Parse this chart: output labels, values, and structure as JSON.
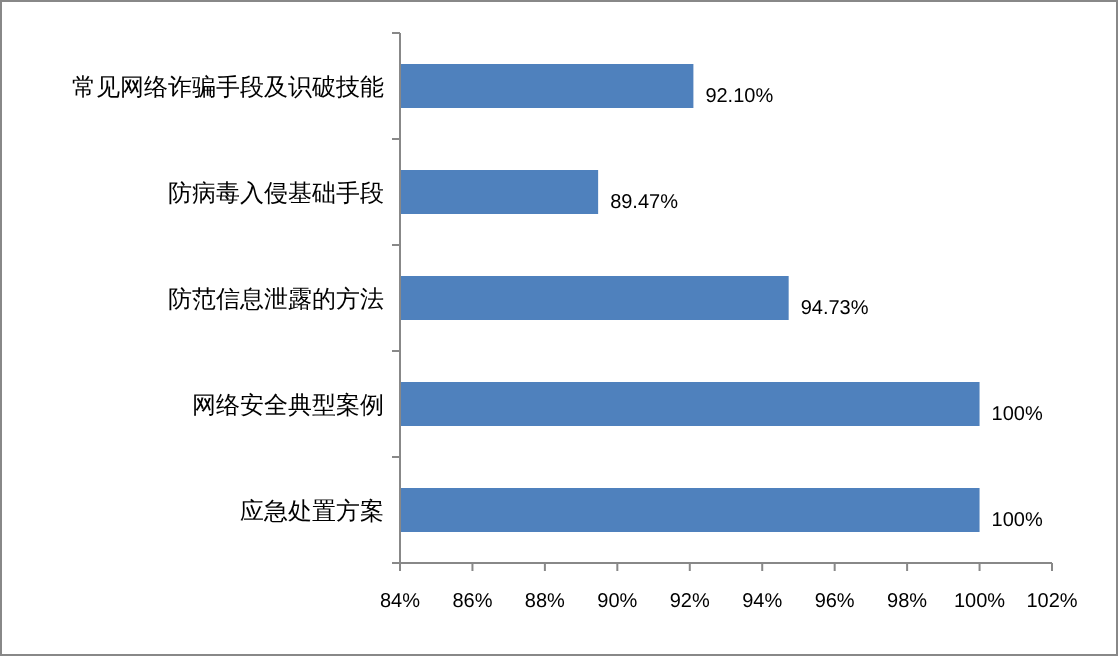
{
  "chart_data": {
    "type": "bar",
    "orientation": "horizontal",
    "categories": [
      "常见网络诈骗手段及识破技能",
      "防病毒入侵基础手段",
      "防范信息泄露的方法",
      "网络安全典型案例",
      "应急处置方案"
    ],
    "values": [
      92.1,
      89.47,
      94.73,
      100,
      100
    ],
    "value_labels": [
      "92.10%",
      "89.47%",
      "94.73%",
      "100%",
      "100%"
    ],
    "color": "#4f81bd",
    "xlim": [
      84,
      102
    ],
    "xticks": [
      {
        "value": 84,
        "label": "84%"
      },
      {
        "value": 86,
        "label": "86%"
      },
      {
        "value": 88,
        "label": "88%"
      },
      {
        "value": 90,
        "label": "90%"
      },
      {
        "value": 92,
        "label": "92%"
      },
      {
        "value": 94,
        "label": "94%"
      },
      {
        "value": 96,
        "label": "96%"
      },
      {
        "value": 98,
        "label": "98%"
      },
      {
        "value": 100,
        "label": "100%"
      },
      {
        "value": 102,
        "label": "102%"
      }
    ],
    "grid": false
  }
}
